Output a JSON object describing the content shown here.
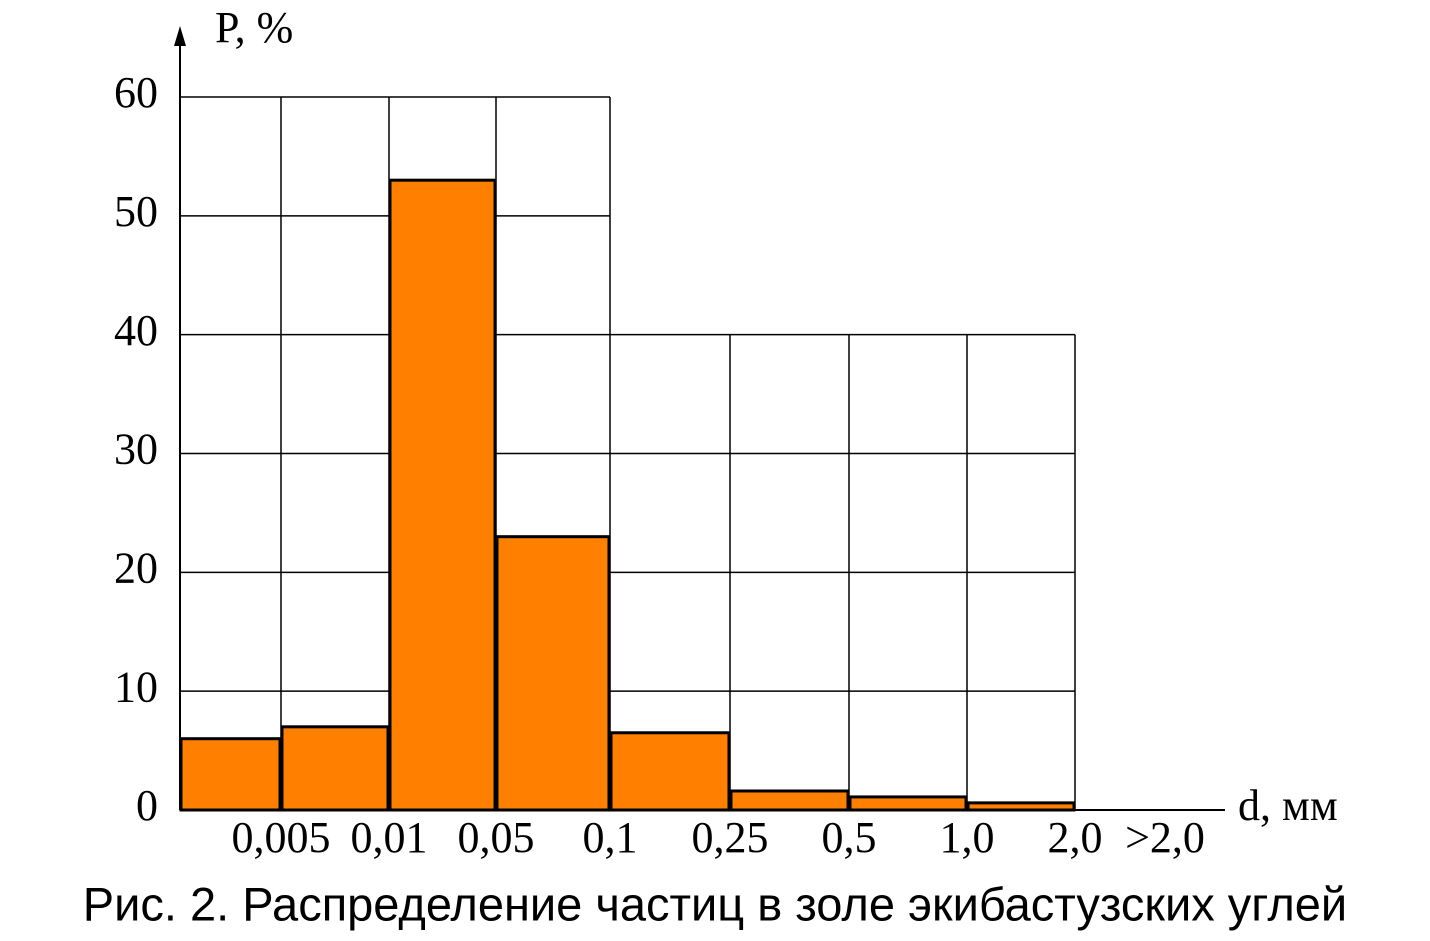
{
  "chart_data": {
    "type": "bar",
    "title": "Рис. 2. Распределение частиц в золе экибастузских углей",
    "y_label": "P, %",
    "x_label": "d, мм",
    "categories": [
      "0,005",
      "0,01",
      "0,05",
      "0,1",
      "0,25",
      "0,5",
      "1,0",
      "2,0",
      ">2,0"
    ],
    "values": [
      6,
      7,
      53,
      23,
      6.5,
      1.6,
      1.1,
      0.6,
      null
    ],
    "color": "#ff8000",
    "ylim": [
      0,
      60
    ],
    "yticks": [
      0,
      10,
      20,
      30,
      40,
      50,
      60
    ],
    "grid": true
  }
}
